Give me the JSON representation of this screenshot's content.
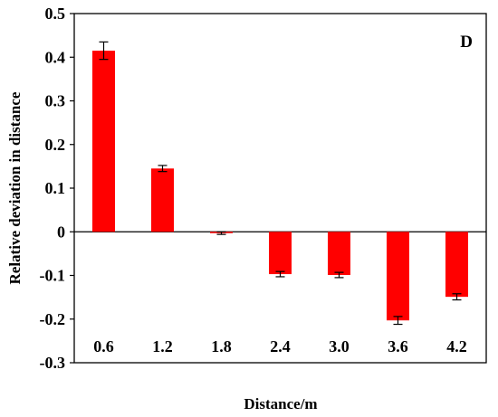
{
  "chart_data": {
    "type": "bar",
    "panel_label": "D",
    "xlabel": "Distance/m",
    "ylabel": "Relative deviation in distance",
    "categories": [
      "0.6",
      "1.2",
      "1.8",
      "2.4",
      "3.0",
      "3.6",
      "4.2"
    ],
    "values": [
      0.415,
      0.145,
      -0.003,
      -0.097,
      -0.099,
      -0.203,
      -0.149
    ],
    "errors": [
      0.02,
      0.007,
      0.003,
      0.006,
      0.006,
      0.009,
      0.007
    ],
    "ylim": [
      -0.3,
      0.5
    ],
    "yticks": [
      "-0.3",
      "-0.2",
      "-0.1",
      "0",
      "0.1",
      "0.2",
      "0.3",
      "0.4",
      "0.5"
    ],
    "bar_color": "#ff0000",
    "grid": false
  }
}
